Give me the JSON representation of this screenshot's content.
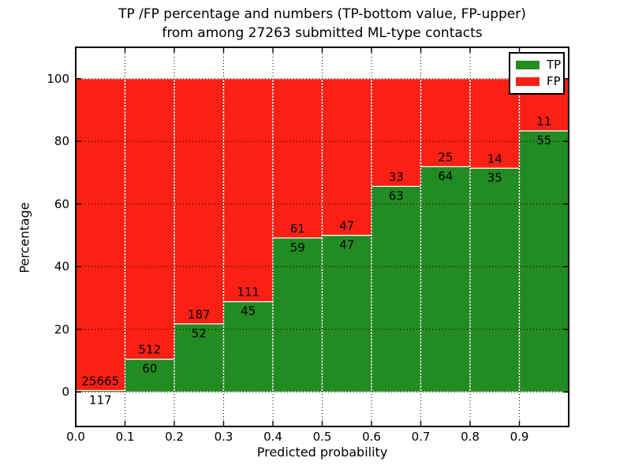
{
  "title": {
    "line1": "TP /FP percentage and numbers (TP-bottom value, FP-upper)",
    "line2": "from among 27263 submitted ML-type contacts"
  },
  "axes": {
    "xlabel": "Predicted probability",
    "ylabel": "Percentage",
    "x_tick_values": [
      0.0,
      0.1,
      0.2,
      0.3,
      0.4,
      0.5,
      0.6,
      0.7,
      0.8,
      0.9
    ],
    "x_tick_labels": [
      "0.0",
      "0.1",
      "0.2",
      "0.3",
      "0.4",
      "0.5",
      "0.6",
      "0.7",
      "0.8",
      "0.9"
    ],
    "y_tick_values": [
      0,
      20,
      40,
      60,
      80,
      100
    ],
    "y_tick_labels": [
      "0",
      "20",
      "40",
      "60",
      "80",
      "100"
    ]
  },
  "legend": {
    "items": [
      {
        "label": "TP",
        "color": "#228b22"
      },
      {
        "label": "FP",
        "color": "#fa2014"
      }
    ]
  },
  "colors": {
    "tp": "#228b22",
    "fp": "#fa2014",
    "grid": "#000000",
    "bar_edge": "#ffffff",
    "background": "#ffffff"
  },
  "chart_data": {
    "type": "bar",
    "stacked": true,
    "normalized_to_percent": true,
    "title": "TP /FP percentage and numbers (TP-bottom value, FP-upper) from among 27263 submitted ML-type contacts",
    "xlabel": "Predicted probability",
    "ylabel": "Percentage",
    "xlim": [
      0.0,
      1.0
    ],
    "ylim": [
      -11,
      110
    ],
    "grid": true,
    "legend_position": "upper right",
    "total_contacts": 27263,
    "bin_edges": [
      0.0,
      0.1,
      0.2,
      0.3,
      0.4,
      0.5,
      0.6,
      0.7,
      0.8,
      0.9,
      1.0
    ],
    "series": [
      {
        "name": "TP",
        "color": "#228b22",
        "counts": [
          117,
          60,
          52,
          45,
          59,
          47,
          63,
          64,
          35,
          55
        ],
        "percent": [
          0.45,
          10.49,
          21.76,
          28.85,
          49.17,
          50.0,
          65.63,
          71.91,
          71.43,
          83.33
        ]
      },
      {
        "name": "FP",
        "color": "#fa2014",
        "counts": [
          25665,
          512,
          187,
          111,
          61,
          47,
          33,
          25,
          14,
          11
        ],
        "percent": [
          99.55,
          89.51,
          78.24,
          71.15,
          50.83,
          50.0,
          34.37,
          28.09,
          28.57,
          16.67
        ]
      }
    ]
  }
}
